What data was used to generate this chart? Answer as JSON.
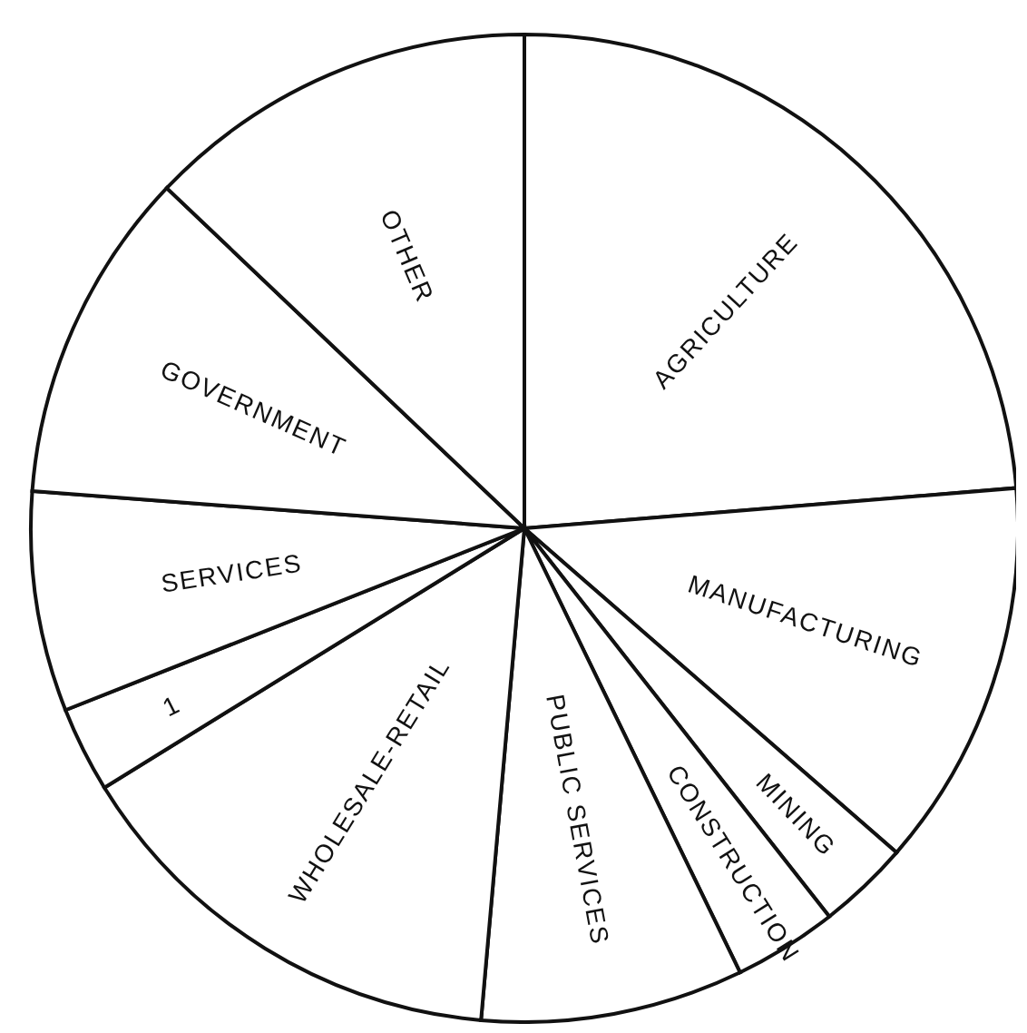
{
  "chart_data": {
    "type": "pie",
    "categories": [
      "AGRICULTURE",
      "MANUFACTURING",
      "MINING",
      "CONSTRUCTION",
      "PUBLIC SERVICES",
      "WHOLESALE-RETAIL",
      "1",
      "SERVICES",
      "GOVERNMENT",
      "OTHER"
    ],
    "values": [
      23.7,
      12.7,
      3.0,
      3.4,
      8.6,
      14.8,
      2.8,
      7.2,
      10.9,
      12.9
    ],
    "colors": [
      "#ffffff",
      "#ffffff",
      "#ffffff",
      "#ffffff",
      "#ffffff",
      "#ffffff",
      "#ffffff",
      "#ffffff",
      "#ffffff",
      "#ffffff"
    ]
  }
}
